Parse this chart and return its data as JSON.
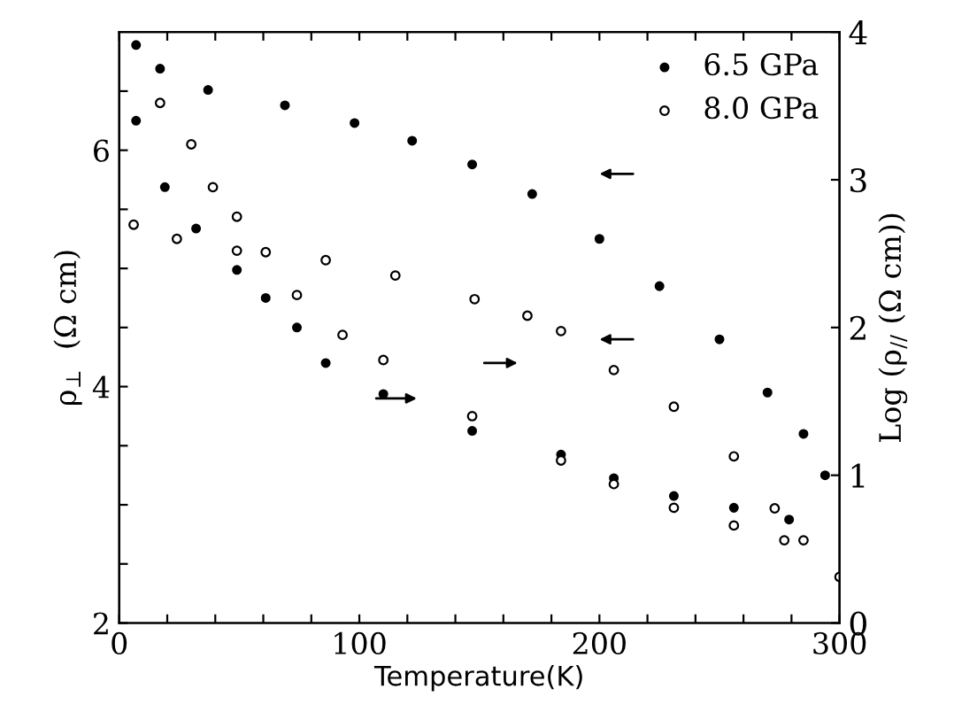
{
  "chart_data": {
    "type": "scatter",
    "xlabel": "Temperature(K)",
    "ylabel": "ρ$_{⊥}$  (Ω cm)",
    "y2label": "Log (ρ$_{//}$ (Ω cm))",
    "xlim": [
      0,
      300
    ],
    "xticks": [
      0,
      {
        "value": 20,
        "label": null
      },
      {
        "value": 40,
        "label": null
      },
      {
        "value": 60,
        "label": null
      },
      {
        "value": 80,
        "label": null
      },
      100,
      {
        "value": 120,
        "label": null
      },
      {
        "value": 140,
        "label": null
      },
      {
        "value": 160,
        "label": null
      },
      {
        "value": 180,
        "label": null
      },
      200,
      {
        "value": 220,
        "label": null
      },
      {
        "value": 240,
        "label": null
      },
      {
        "value": 260,
        "label": null
      },
      {
        "value": 280,
        "label": null
      },
      300
    ],
    "ylim": [
      2,
      7
    ],
    "yticks": [
      2,
      {
        "value": 2.5,
        "label": null
      },
      {
        "value": 3,
        "label": null
      },
      {
        "value": 3.5,
        "label": null
      },
      4,
      {
        "value": 4.5,
        "label": null
      },
      {
        "value": 5,
        "label": null
      },
      {
        "value": 5.5,
        "label": null
      },
      6,
      {
        "value": 6.5,
        "label": null
      }
    ],
    "y2lim": [
      0,
      4
    ],
    "y2ticks": [
      0,
      1,
      2,
      3,
      4
    ],
    "marker": "circle",
    "legend": "top right",
    "grid": false,
    "series": [
      {
        "name": "6.5 GPa",
        "color": "#000000",
        "x": [
          7,
          17,
          37,
          69,
          98,
          122,
          147,
          172,
          200,
          225,
          250,
          270,
          285,
          294
        ],
        "values": [
          6.89,
          6.69,
          6.51,
          6.38,
          6.23,
          6.08,
          5.88,
          5.63,
          5.25,
          4.85,
          4.4,
          3.95,
          3.6,
          3.25
        ]
      },
      {
        "name": "8.0 GPa",
        "color": "#000000",
        "x": [
          6,
          24,
          49,
          86,
          115,
          148,
          170,
          184,
          206,
          231,
          256,
          273,
          285,
          300
        ],
        "values": [
          5.37,
          5.25,
          5.15,
          5.07,
          4.94,
          4.74,
          4.6,
          4.47,
          4.14,
          3.83,
          3.41,
          2.97,
          2.7,
          2.39
        ]
      },
      {
        "color": "#000000",
        "axis": "y2",
        "x": [
          7,
          19,
          32,
          49,
          61,
          74,
          86,
          110,
          147,
          184,
          206,
          231,
          256,
          279
        ],
        "values": [
          3.4,
          2.95,
          2.67,
          2.39,
          2.2,
          2.0,
          1.76,
          1.55,
          1.3,
          1.14,
          0.98,
          0.86,
          0.78,
          0.7
        ]
      },
      {
        "color": "#000000",
        "axis": "y2",
        "x": [
          17,
          30,
          39,
          49,
          61,
          74,
          93,
          110,
          147,
          184,
          206,
          231,
          256,
          277
        ],
        "values": [
          3.52,
          3.24,
          2.95,
          2.75,
          2.51,
          2.22,
          1.95,
          1.78,
          1.4,
          1.1,
          0.94,
          0.78,
          0.66,
          0.56
        ]
      }
    ]
  }
}
